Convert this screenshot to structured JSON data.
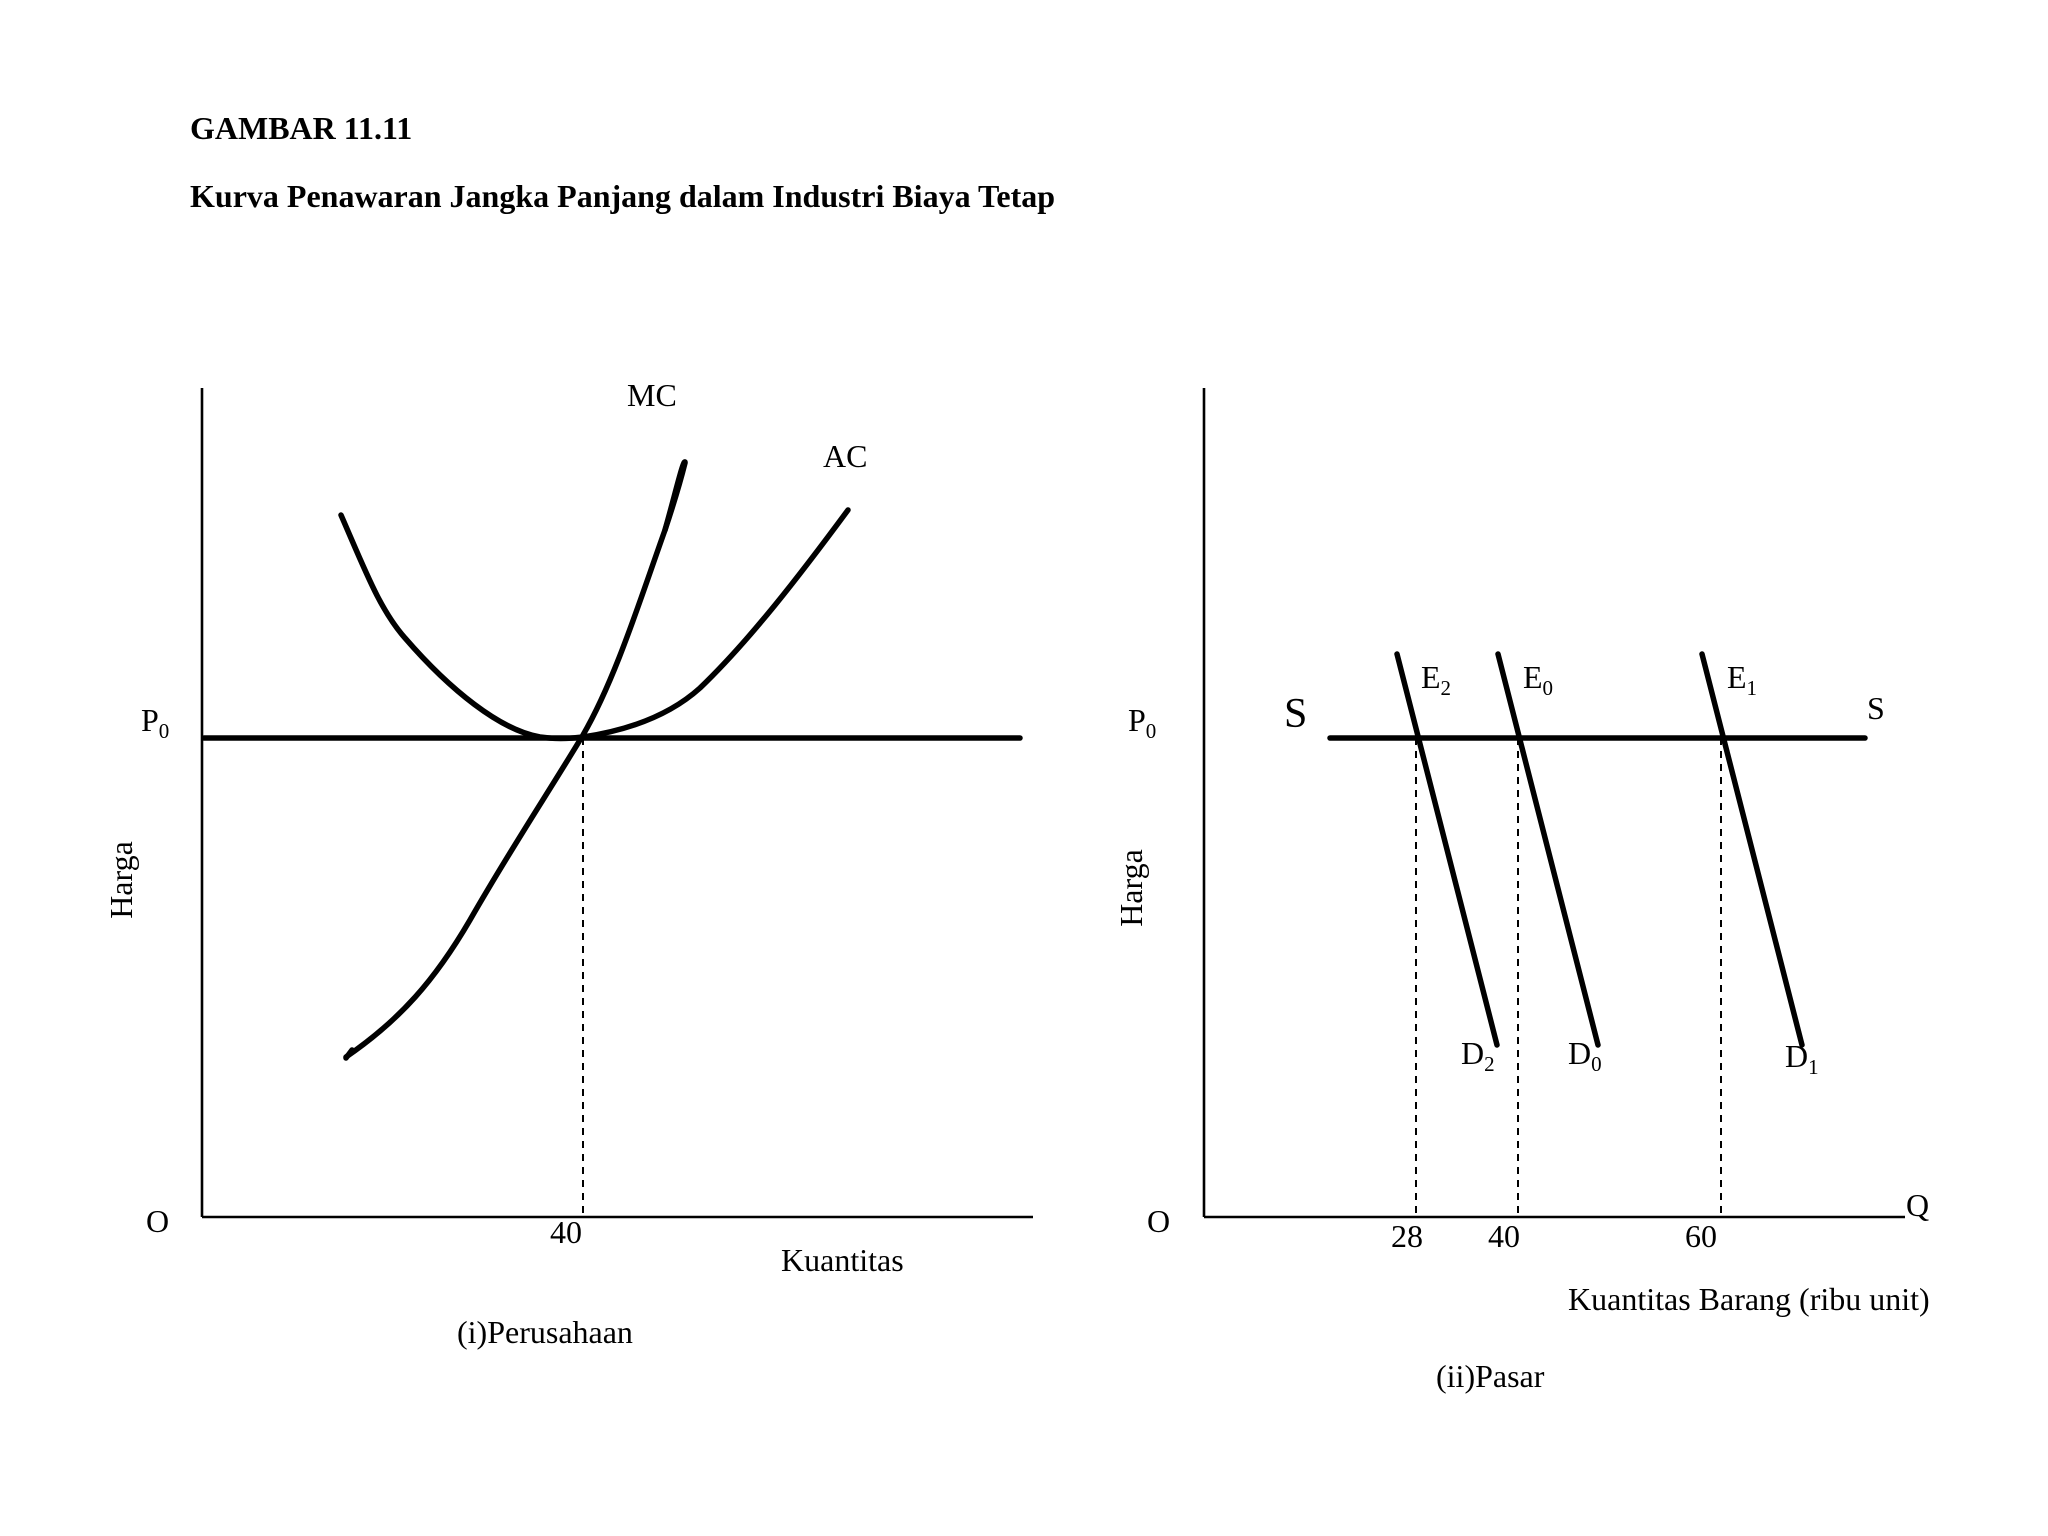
{
  "figure": {
    "label": "GAMBAR 11.11",
    "title": "Kurva Penawaran Jangka Panjang dalam Industri Biaya Tetap"
  },
  "panel_firm": {
    "caption": "(i)Perusahaan",
    "y_axis_label": "Harga",
    "x_axis_label": "Kuantitas",
    "origin_label": "O",
    "price_label": "P",
    "price_sub": "0",
    "quantity_tick": "40",
    "mc_label": "MC",
    "ac_label": "AC"
  },
  "panel_market": {
    "caption": "(ii)Pasar",
    "y_axis_label": "Harga",
    "x_axis_label": "Kuantitas Barang (ribu unit)",
    "x_axis_end_label": "Q",
    "origin_label": "O",
    "price_label": "P",
    "price_sub": "0",
    "supply_label_left": "S",
    "supply_label_right": "S",
    "ticks": [
      "28",
      "40",
      "60"
    ],
    "demand_curves": [
      {
        "top_label": "E",
        "top_sub": "2",
        "bottom_label": "D",
        "bottom_sub": "2",
        "quantity": 28
      },
      {
        "top_label": "E",
        "top_sub": "0",
        "bottom_label": "D",
        "bottom_sub": "0",
        "quantity": 40
      },
      {
        "top_label": "E",
        "top_sub": "1",
        "bottom_label": "D",
        "bottom_sub": "1",
        "quantity": 60
      }
    ]
  }
}
